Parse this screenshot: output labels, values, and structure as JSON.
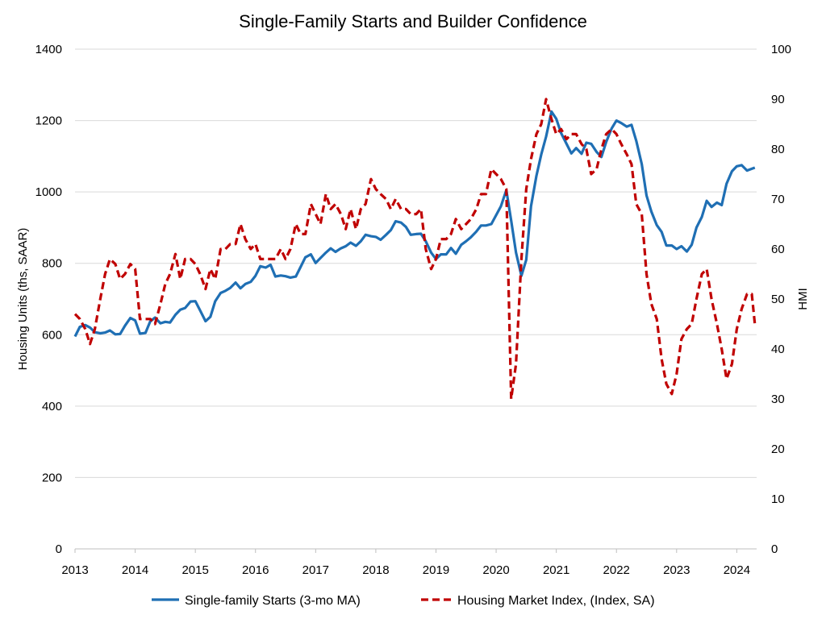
{
  "chart_data": {
    "type": "line",
    "title": "Single-Family Starts and Builder Confidence",
    "ylabel": "Housing Units (ths, SAAR)",
    "y2label": "HMI",
    "ylim": [
      0,
      1400
    ],
    "y2lim": [
      0,
      100
    ],
    "xlim": [
      2013,
      2024.33
    ],
    "grid": true,
    "legend_position": "bottom",
    "x_ticks": [
      "2013",
      "2014",
      "2015",
      "2016",
      "2017",
      "2018",
      "2019",
      "2020",
      "2021",
      "2022",
      "2023",
      "2024"
    ],
    "y_ticks": [
      "0",
      "200",
      "400",
      "600",
      "800",
      "1000",
      "1200",
      "1400"
    ],
    "y2_ticks": [
      "0",
      "10",
      "20",
      "30",
      "40",
      "50",
      "60",
      "70",
      "80",
      "90",
      "100"
    ],
    "series": [
      {
        "name": "Single-family Starts (3-mo MA)",
        "axis": "left",
        "color": "#1f6fb4",
        "style": "solid",
        "points": [
          [
            2013.0,
            595
          ],
          [
            2013.08,
            622
          ],
          [
            2013.17,
            627
          ],
          [
            2013.25,
            620
          ],
          [
            2013.33,
            607
          ],
          [
            2013.42,
            604
          ],
          [
            2013.5,
            606
          ],
          [
            2013.58,
            612
          ],
          [
            2013.67,
            601
          ],
          [
            2013.75,
            602
          ],
          [
            2013.83,
            625
          ],
          [
            2013.92,
            647
          ],
          [
            2014.0,
            640
          ],
          [
            2014.08,
            603
          ],
          [
            2014.17,
            605
          ],
          [
            2014.25,
            637
          ],
          [
            2014.33,
            648
          ],
          [
            2014.42,
            632
          ],
          [
            2014.5,
            636
          ],
          [
            2014.58,
            634
          ],
          [
            2014.67,
            656
          ],
          [
            2014.75,
            670
          ],
          [
            2014.83,
            675
          ],
          [
            2014.92,
            693
          ],
          [
            2015.0,
            694
          ],
          [
            2015.08,
            668
          ],
          [
            2015.17,
            638
          ],
          [
            2015.25,
            650
          ],
          [
            2015.33,
            694
          ],
          [
            2015.42,
            717
          ],
          [
            2015.5,
            723
          ],
          [
            2015.58,
            731
          ],
          [
            2015.67,
            746
          ],
          [
            2015.75,
            730
          ],
          [
            2015.83,
            742
          ],
          [
            2015.92,
            748
          ],
          [
            2016.0,
            765
          ],
          [
            2016.08,
            792
          ],
          [
            2016.17,
            788
          ],
          [
            2016.25,
            796
          ],
          [
            2016.33,
            763
          ],
          [
            2016.42,
            766
          ],
          [
            2016.5,
            764
          ],
          [
            2016.58,
            760
          ],
          [
            2016.67,
            763
          ],
          [
            2016.75,
            790
          ],
          [
            2016.83,
            817
          ],
          [
            2016.92,
            825
          ],
          [
            2017.0,
            801
          ],
          [
            2017.08,
            815
          ],
          [
            2017.17,
            830
          ],
          [
            2017.25,
            842
          ],
          [
            2017.33,
            832
          ],
          [
            2017.42,
            842
          ],
          [
            2017.5,
            848
          ],
          [
            2017.58,
            858
          ],
          [
            2017.67,
            849
          ],
          [
            2017.75,
            862
          ],
          [
            2017.83,
            880
          ],
          [
            2017.92,
            876
          ],
          [
            2018.0,
            874
          ],
          [
            2018.08,
            866
          ],
          [
            2018.17,
            880
          ],
          [
            2018.25,
            893
          ],
          [
            2018.33,
            918
          ],
          [
            2018.42,
            914
          ],
          [
            2018.5,
            902
          ],
          [
            2018.58,
            880
          ],
          [
            2018.67,
            882
          ],
          [
            2018.75,
            883
          ],
          [
            2018.83,
            862
          ],
          [
            2018.92,
            830
          ],
          [
            2019.0,
            812
          ],
          [
            2019.08,
            825
          ],
          [
            2019.17,
            825
          ],
          [
            2019.25,
            843
          ],
          [
            2019.33,
            827
          ],
          [
            2019.42,
            852
          ],
          [
            2019.5,
            862
          ],
          [
            2019.58,
            873
          ],
          [
            2019.67,
            889
          ],
          [
            2019.75,
            906
          ],
          [
            2019.83,
            906
          ],
          [
            2019.92,
            910
          ],
          [
            2020.0,
            935
          ],
          [
            2020.08,
            960
          ],
          [
            2020.17,
            1005
          ],
          [
            2020.25,
            920
          ],
          [
            2020.33,
            830
          ],
          [
            2020.42,
            765
          ],
          [
            2020.5,
            810
          ],
          [
            2020.58,
            960
          ],
          [
            2020.67,
            1045
          ],
          [
            2020.75,
            1105
          ],
          [
            2020.83,
            1155
          ],
          [
            2020.92,
            1225
          ],
          [
            2021.0,
            1205
          ],
          [
            2021.08,
            1165
          ],
          [
            2021.17,
            1135
          ],
          [
            2021.25,
            1108
          ],
          [
            2021.33,
            1123
          ],
          [
            2021.42,
            1107
          ],
          [
            2021.5,
            1138
          ],
          [
            2021.58,
            1135
          ],
          [
            2021.67,
            1112
          ],
          [
            2021.75,
            1098
          ],
          [
            2021.83,
            1140
          ],
          [
            2021.92,
            1178
          ],
          [
            2022.0,
            1200
          ],
          [
            2022.08,
            1193
          ],
          [
            2022.17,
            1183
          ],
          [
            2022.25,
            1188
          ],
          [
            2022.33,
            1143
          ],
          [
            2022.42,
            1078
          ],
          [
            2022.5,
            990
          ],
          [
            2022.58,
            945
          ],
          [
            2022.67,
            907
          ],
          [
            2022.75,
            888
          ],
          [
            2022.83,
            850
          ],
          [
            2022.92,
            850
          ],
          [
            2023.0,
            840
          ],
          [
            2023.08,
            848
          ],
          [
            2023.17,
            833
          ],
          [
            2023.25,
            852
          ],
          [
            2023.33,
            900
          ],
          [
            2023.42,
            930
          ],
          [
            2023.5,
            975
          ],
          [
            2023.58,
            958
          ],
          [
            2023.67,
            970
          ],
          [
            2023.75,
            963
          ],
          [
            2023.83,
            1023
          ],
          [
            2023.92,
            1058
          ],
          [
            2024.0,
            1072
          ],
          [
            2024.08,
            1075
          ],
          [
            2024.17,
            1060
          ],
          [
            2024.25,
            1065
          ],
          [
            2024.3,
            1068
          ]
        ]
      },
      {
        "name": "Housing Market Index, (Index, SA)",
        "axis": "right",
        "color": "#c00000",
        "style": "dashed",
        "points": [
          [
            2013.0,
            47
          ],
          [
            2013.08,
            46
          ],
          [
            2013.17,
            44
          ],
          [
            2013.25,
            41
          ],
          [
            2013.33,
            44
          ],
          [
            2013.42,
            50
          ],
          [
            2013.5,
            55
          ],
          [
            2013.58,
            58
          ],
          [
            2013.67,
            57
          ],
          [
            2013.75,
            54
          ],
          [
            2013.83,
            55
          ],
          [
            2013.92,
            57
          ],
          [
            2014.0,
            56
          ],
          [
            2014.08,
            46
          ],
          [
            2014.17,
            46
          ],
          [
            2014.25,
            46
          ],
          [
            2014.33,
            45
          ],
          [
            2014.42,
            49
          ],
          [
            2014.5,
            53
          ],
          [
            2014.58,
            55
          ],
          [
            2014.67,
            59
          ],
          [
            2014.75,
            54
          ],
          [
            2014.83,
            58
          ],
          [
            2014.92,
            58
          ],
          [
            2015.0,
            57
          ],
          [
            2015.08,
            55
          ],
          [
            2015.17,
            52
          ],
          [
            2015.25,
            56
          ],
          [
            2015.33,
            54
          ],
          [
            2015.42,
            60
          ],
          [
            2015.5,
            60
          ],
          [
            2015.58,
            61
          ],
          [
            2015.67,
            61
          ],
          [
            2015.75,
            65
          ],
          [
            2015.83,
            62
          ],
          [
            2015.92,
            60
          ],
          [
            2016.0,
            61
          ],
          [
            2016.08,
            58
          ],
          [
            2016.17,
            58
          ],
          [
            2016.25,
            58
          ],
          [
            2016.33,
            58
          ],
          [
            2016.42,
            60
          ],
          [
            2016.5,
            58
          ],
          [
            2016.58,
            60
          ],
          [
            2016.67,
            65
          ],
          [
            2016.75,
            63
          ],
          [
            2016.83,
            63
          ],
          [
            2016.92,
            69
          ],
          [
            2017.0,
            67
          ],
          [
            2017.08,
            65
          ],
          [
            2017.17,
            71
          ],
          [
            2017.25,
            68
          ],
          [
            2017.33,
            69
          ],
          [
            2017.42,
            67
          ],
          [
            2017.5,
            64
          ],
          [
            2017.58,
            68
          ],
          [
            2017.67,
            64
          ],
          [
            2017.75,
            68
          ],
          [
            2017.83,
            69
          ],
          [
            2017.92,
            74
          ],
          [
            2018.0,
            72
          ],
          [
            2018.08,
            71
          ],
          [
            2018.17,
            70
          ],
          [
            2018.25,
            68
          ],
          [
            2018.33,
            70
          ],
          [
            2018.42,
            68
          ],
          [
            2018.5,
            68
          ],
          [
            2018.58,
            67
          ],
          [
            2018.67,
            67
          ],
          [
            2018.75,
            68
          ],
          [
            2018.83,
            60
          ],
          [
            2018.92,
            56
          ],
          [
            2019.0,
            58
          ],
          [
            2019.08,
            62
          ],
          [
            2019.17,
            62
          ],
          [
            2019.25,
            63
          ],
          [
            2019.33,
            66
          ],
          [
            2019.42,
            64
          ],
          [
            2019.5,
            65
          ],
          [
            2019.58,
            66
          ],
          [
            2019.67,
            68
          ],
          [
            2019.75,
            71
          ],
          [
            2019.83,
            71
          ],
          [
            2019.92,
            76
          ],
          [
            2020.0,
            75
          ],
          [
            2020.08,
            74
          ],
          [
            2020.17,
            72
          ],
          [
            2020.25,
            30
          ],
          [
            2020.33,
            37
          ],
          [
            2020.42,
            58
          ],
          [
            2020.5,
            72
          ],
          [
            2020.58,
            78
          ],
          [
            2020.67,
            83
          ],
          [
            2020.75,
            85
          ],
          [
            2020.83,
            90
          ],
          [
            2020.92,
            86
          ],
          [
            2021.0,
            83
          ],
          [
            2021.08,
            84
          ],
          [
            2021.17,
            82
          ],
          [
            2021.25,
            83
          ],
          [
            2021.33,
            83
          ],
          [
            2021.42,
            81
          ],
          [
            2021.5,
            80
          ],
          [
            2021.58,
            75
          ],
          [
            2021.67,
            76
          ],
          [
            2021.75,
            80
          ],
          [
            2021.83,
            83
          ],
          [
            2021.92,
            84
          ],
          [
            2022.0,
            83
          ],
          [
            2022.08,
            81
          ],
          [
            2022.17,
            79
          ],
          [
            2022.25,
            77
          ],
          [
            2022.33,
            69
          ],
          [
            2022.42,
            67
          ],
          [
            2022.5,
            55
          ],
          [
            2022.58,
            49
          ],
          [
            2022.67,
            46
          ],
          [
            2022.75,
            38
          ],
          [
            2022.83,
            33
          ],
          [
            2022.92,
            31
          ],
          [
            2023.0,
            35
          ],
          [
            2023.08,
            42
          ],
          [
            2023.17,
            44
          ],
          [
            2023.25,
            45
          ],
          [
            2023.33,
            50
          ],
          [
            2023.42,
            55
          ],
          [
            2023.5,
            56
          ],
          [
            2023.58,
            50
          ],
          [
            2023.67,
            45
          ],
          [
            2023.75,
            40
          ],
          [
            2023.83,
            34
          ],
          [
            2023.92,
            37
          ],
          [
            2024.0,
            44
          ],
          [
            2024.08,
            48
          ],
          [
            2024.17,
            51
          ],
          [
            2024.25,
            51
          ],
          [
            2024.3,
            45
          ]
        ]
      }
    ]
  }
}
